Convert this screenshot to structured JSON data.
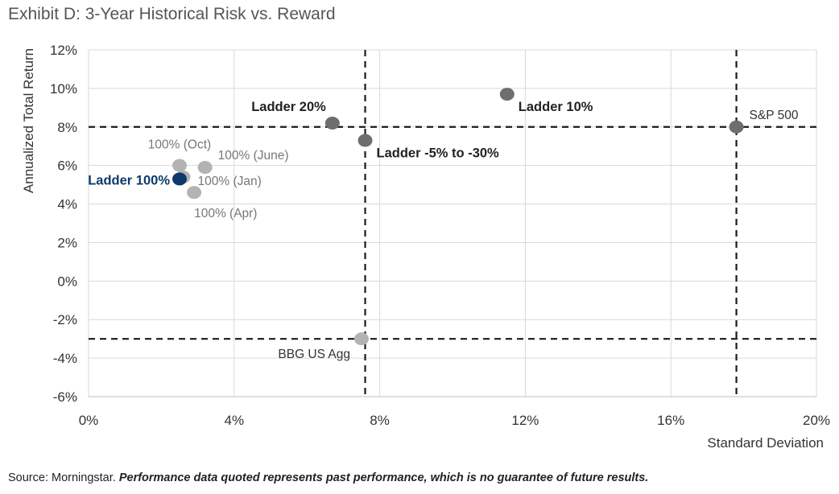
{
  "chart_data": {
    "type": "scatter",
    "title": "Exhibit D: 3-Year Historical Risk vs. Reward",
    "xlabel": "Standard Deviation",
    "ylabel": "Annualized Total Return",
    "xlim": [
      0,
      20
    ],
    "ylim": [
      -6,
      12
    ],
    "x_ticks": [
      0,
      4,
      8,
      12,
      16,
      20
    ],
    "y_ticks": [
      -6,
      -4,
      -2,
      0,
      2,
      4,
      6,
      8,
      10,
      12
    ],
    "x_tick_labels": [
      "0%",
      "4%",
      "8%",
      "12%",
      "16%",
      "20%"
    ],
    "y_tick_labels": [
      "-6%",
      "-4%",
      "-2%",
      "0%",
      "2%",
      "4%",
      "6%",
      "8%",
      "10%",
      "12%"
    ],
    "grid": true,
    "points": [
      {
        "label": "Ladder 20%",
        "x": 6.7,
        "y": 8.2,
        "color": "#6e6e6e",
        "label_color": "#222222",
        "bold": true,
        "label_pos": "upper-left"
      },
      {
        "label": "Ladder 10%",
        "x": 11.5,
        "y": 9.7,
        "color": "#6e6e6e",
        "label_color": "#222222",
        "bold": true,
        "label_pos": "lower-right"
      },
      {
        "label": "S&P 500",
        "x": 17.8,
        "y": 8.0,
        "color": "#6e6e6e",
        "label_color": "#333333",
        "bold": false,
        "label_pos": "upper-right"
      },
      {
        "label": "Ladder -5% to -30%",
        "x": 7.6,
        "y": 7.3,
        "color": "#6e6e6e",
        "label_color": "#222222",
        "bold": true,
        "label_pos": "lower-right"
      },
      {
        "label": "100% (Oct)",
        "x": 2.5,
        "y": 6.0,
        "color": "#b3b3b3",
        "label_color": "#777777",
        "bold": false,
        "label_pos": "above"
      },
      {
        "label": "100% (June)",
        "x": 3.2,
        "y": 5.9,
        "color": "#b3b3b3",
        "label_color": "#777777",
        "bold": false,
        "label_pos": "upper-right"
      },
      {
        "label": "100% (Jan)",
        "x": 2.6,
        "y": 5.4,
        "color": "#b3b3b3",
        "label_color": "#777777",
        "bold": false,
        "label_pos": "right"
      },
      {
        "label": "100% (Apr)",
        "x": 2.9,
        "y": 4.6,
        "color": "#b3b3b3",
        "label_color": "#777777",
        "bold": false,
        "label_pos": "below-right"
      },
      {
        "label": "Ladder 100%",
        "x": 2.5,
        "y": 5.3,
        "color": "#0d3a6b",
        "label_color": "#0d3a6b",
        "bold": true,
        "label_pos": "left"
      },
      {
        "label": "BBG US Agg",
        "x": 7.5,
        "y": -3.0,
        "color": "#b3b3b3",
        "label_color": "#333333",
        "bold": false,
        "label_pos": "below-left"
      }
    ],
    "reference_lines": {
      "vertical": [
        7.6,
        17.8
      ],
      "horizontal": [
        8.0,
        -3.0
      ],
      "style": "dashed"
    },
    "annotations": {
      "source_prefix": "Source: Morningstar.",
      "source_note": "Performance data quoted represents past performance, which is no guarantee of future results."
    }
  }
}
